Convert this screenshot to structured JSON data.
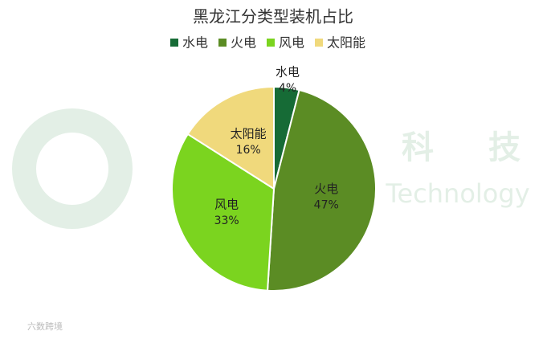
{
  "chart_data": {
    "type": "pie",
    "title": "黑龙江分类型装机占比",
    "categories": [
      "水电",
      "火电",
      "风电",
      "太阳能"
    ],
    "values": [
      4,
      47,
      33,
      16
    ],
    "value_labels": [
      "4%",
      "47%",
      "33%",
      "16%"
    ],
    "colors": [
      "#166b36",
      "#5b8c24",
      "#7bd41f",
      "#f0d97c"
    ],
    "legend": "top",
    "watermarks": [
      "科",
      "技",
      "Technology"
    ],
    "source": "六数跨境"
  }
}
